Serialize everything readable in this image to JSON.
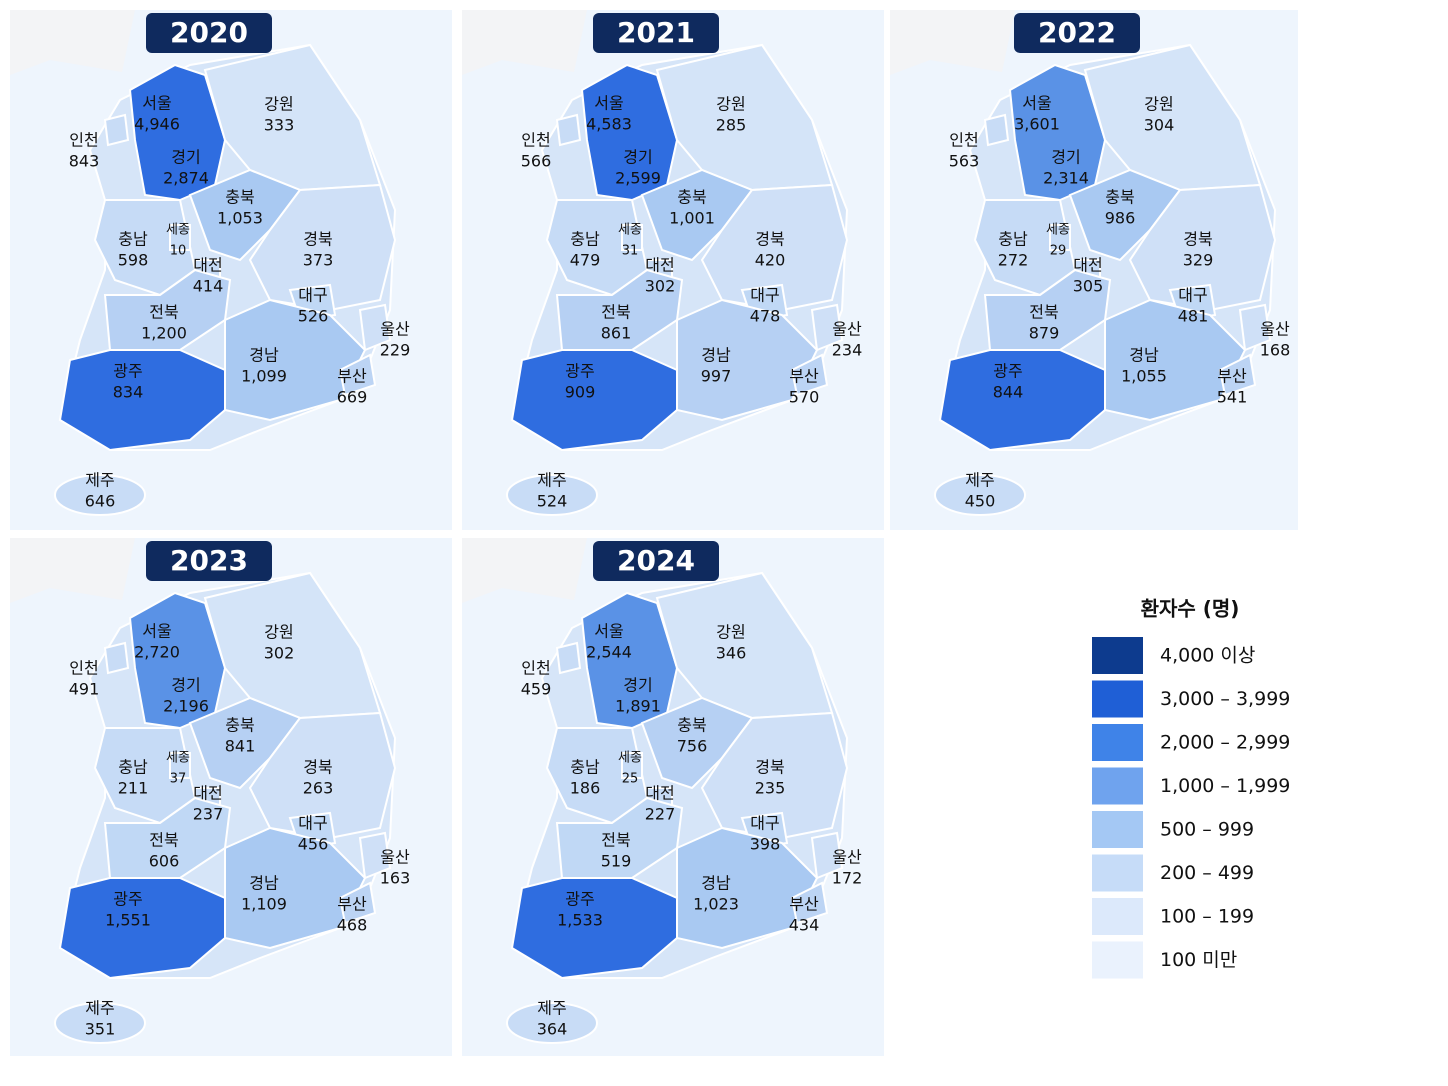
{
  "maps": [
    {
      "year": "2020",
      "regions": [
        {
          "name": "서울",
          "value": "4,946",
          "color": "#2f6de0"
        },
        {
          "name": "인천",
          "value": "843",
          "color": "#c8dcf6"
        },
        {
          "name": "경기",
          "value": "2,874",
          "color": "#2f6de0"
        },
        {
          "name": "강원",
          "value": "333",
          "color": "#d4e4f8"
        },
        {
          "name": "충북",
          "value": "1,053",
          "color": "#a9c9f2"
        },
        {
          "name": "충남",
          "value": "598",
          "color": "#c6dbf6"
        },
        {
          "name": "세종",
          "value": "10",
          "color": "#c6dbf6"
        },
        {
          "name": "대전",
          "value": "414",
          "color": "#c6dbf6"
        },
        {
          "name": "경북",
          "value": "373",
          "color": "#cfe0f7"
        },
        {
          "name": "대구",
          "value": "526",
          "color": "#c0d8f5"
        },
        {
          "name": "전북",
          "value": "1,200",
          "color": "#b6d0f3"
        },
        {
          "name": "울산",
          "value": "229",
          "color": "#cfe0f7"
        },
        {
          "name": "경남",
          "value": "1,099",
          "color": "#a9c9f2"
        },
        {
          "name": "부산",
          "value": "669",
          "color": "#bcd4f4"
        },
        {
          "name": "광주",
          "value": "834",
          "color": "#2f6de0"
        },
        {
          "name": "제주",
          "value": "646",
          "color": "#c8dcf6"
        }
      ]
    },
    {
      "year": "2021",
      "regions": [
        {
          "name": "서울",
          "value": "4,583",
          "color": "#2f6de0"
        },
        {
          "name": "인천",
          "value": "566",
          "color": "#c8dcf6"
        },
        {
          "name": "경기",
          "value": "2,599",
          "color": "#2f6de0"
        },
        {
          "name": "강원",
          "value": "285",
          "color": "#d4e4f8"
        },
        {
          "name": "충북",
          "value": "1,001",
          "color": "#a9c9f2"
        },
        {
          "name": "충남",
          "value": "479",
          "color": "#c6dbf6"
        },
        {
          "name": "세종",
          "value": "31",
          "color": "#c6dbf6"
        },
        {
          "name": "대전",
          "value": "302",
          "color": "#c6dbf6"
        },
        {
          "name": "경북",
          "value": "420",
          "color": "#cfe0f7"
        },
        {
          "name": "대구",
          "value": "478",
          "color": "#c0d8f5"
        },
        {
          "name": "전북",
          "value": "861",
          "color": "#b6d0f3"
        },
        {
          "name": "울산",
          "value": "234",
          "color": "#cfe0f7"
        },
        {
          "name": "경남",
          "value": "997",
          "color": "#b6d0f3"
        },
        {
          "name": "부산",
          "value": "570",
          "color": "#bcd4f4"
        },
        {
          "name": "광주",
          "value": "909",
          "color": "#2f6de0"
        },
        {
          "name": "제주",
          "value": "524",
          "color": "#c8dcf6"
        }
      ]
    },
    {
      "year": "2022",
      "regions": [
        {
          "name": "서울",
          "value": "3,601",
          "color": "#5a92e6"
        },
        {
          "name": "인천",
          "value": "563",
          "color": "#c8dcf6"
        },
        {
          "name": "경기",
          "value": "2,314",
          "color": "#5a92e6"
        },
        {
          "name": "강원",
          "value": "304",
          "color": "#d4e4f8"
        },
        {
          "name": "충북",
          "value": "986",
          "color": "#a9c9f2"
        },
        {
          "name": "충남",
          "value": "272",
          "color": "#c6dbf6"
        },
        {
          "name": "세종",
          "value": "29",
          "color": "#c6dbf6"
        },
        {
          "name": "대전",
          "value": "305",
          "color": "#c6dbf6"
        },
        {
          "name": "경북",
          "value": "329",
          "color": "#cfe0f7"
        },
        {
          "name": "대구",
          "value": "481",
          "color": "#c0d8f5"
        },
        {
          "name": "전북",
          "value": "879",
          "color": "#b6d0f3"
        },
        {
          "name": "울산",
          "value": "168",
          "color": "#cfe0f7"
        },
        {
          "name": "경남",
          "value": "1,055",
          "color": "#a9c9f2"
        },
        {
          "name": "부산",
          "value": "541",
          "color": "#bcd4f4"
        },
        {
          "name": "광주",
          "value": "844",
          "color": "#2f6de0"
        },
        {
          "name": "제주",
          "value": "450",
          "color": "#c8dcf6"
        }
      ]
    },
    {
      "year": "2023",
      "regions": [
        {
          "name": "서울",
          "value": "2,720",
          "color": "#5a92e6"
        },
        {
          "name": "인천",
          "value": "491",
          "color": "#c8dcf6"
        },
        {
          "name": "경기",
          "value": "2,196",
          "color": "#5a92e6"
        },
        {
          "name": "강원",
          "value": "302",
          "color": "#d4e4f8"
        },
        {
          "name": "충북",
          "value": "841",
          "color": "#b6d0f3"
        },
        {
          "name": "충남",
          "value": "211",
          "color": "#c6dbf6"
        },
        {
          "name": "세종",
          "value": "37",
          "color": "#c6dbf6"
        },
        {
          "name": "대전",
          "value": "237",
          "color": "#c6dbf6"
        },
        {
          "name": "경북",
          "value": "263",
          "color": "#cfe0f7"
        },
        {
          "name": "대구",
          "value": "456",
          "color": "#c0d8f5"
        },
        {
          "name": "전북",
          "value": "606",
          "color": "#c0d8f5"
        },
        {
          "name": "울산",
          "value": "163",
          "color": "#cfe0f7"
        },
        {
          "name": "경남",
          "value": "1,109",
          "color": "#a9c9f2"
        },
        {
          "name": "부산",
          "value": "468",
          "color": "#bcd4f4"
        },
        {
          "name": "광주",
          "value": "1,551",
          "color": "#2f6de0"
        },
        {
          "name": "제주",
          "value": "351",
          "color": "#c8dcf6"
        }
      ]
    },
    {
      "year": "2024",
      "regions": [
        {
          "name": "서울",
          "value": "2,544",
          "color": "#5a92e6"
        },
        {
          "name": "인천",
          "value": "459",
          "color": "#c8dcf6"
        },
        {
          "name": "경기",
          "value": "1,891",
          "color": "#5a92e6"
        },
        {
          "name": "강원",
          "value": "346",
          "color": "#d4e4f8"
        },
        {
          "name": "충북",
          "value": "756",
          "color": "#b6d0f3"
        },
        {
          "name": "충남",
          "value": "186",
          "color": "#c6dbf6"
        },
        {
          "name": "세종",
          "value": "25",
          "color": "#c6dbf6"
        },
        {
          "name": "대전",
          "value": "227",
          "color": "#c6dbf6"
        },
        {
          "name": "경북",
          "value": "235",
          "color": "#cfe0f7"
        },
        {
          "name": "대구",
          "value": "398",
          "color": "#c0d8f5"
        },
        {
          "name": "전북",
          "value": "519",
          "color": "#c0d8f5"
        },
        {
          "name": "울산",
          "value": "172",
          "color": "#cfe0f7"
        },
        {
          "name": "경남",
          "value": "1,023",
          "color": "#a9c9f2"
        },
        {
          "name": "부산",
          "value": "434",
          "color": "#bcd4f4"
        },
        {
          "name": "광주",
          "value": "1,533",
          "color": "#2f6de0"
        },
        {
          "name": "제주",
          "value": "364",
          "color": "#c8dcf6"
        }
      ]
    }
  ],
  "legend": {
    "title": "환자수 (명)",
    "items": [
      {
        "label": "4,000 이상",
        "color": "#0d3b8e"
      },
      {
        "label": "3,000 – 3,999",
        "color": "#1f5fd6"
      },
      {
        "label": "2,000 – 2,999",
        "color": "#3f83e8"
      },
      {
        "label": "1,000 – 1,999",
        "color": "#6fa3ee"
      },
      {
        "label": "500 – 999",
        "color": "#a4c8f4"
      },
      {
        "label": "200 – 499",
        "color": "#c6dcf8"
      },
      {
        "label": "100 – 199",
        "color": "#dce9fb"
      },
      {
        "label": "100 미만",
        "color": "#eaf2fd"
      }
    ]
  }
}
